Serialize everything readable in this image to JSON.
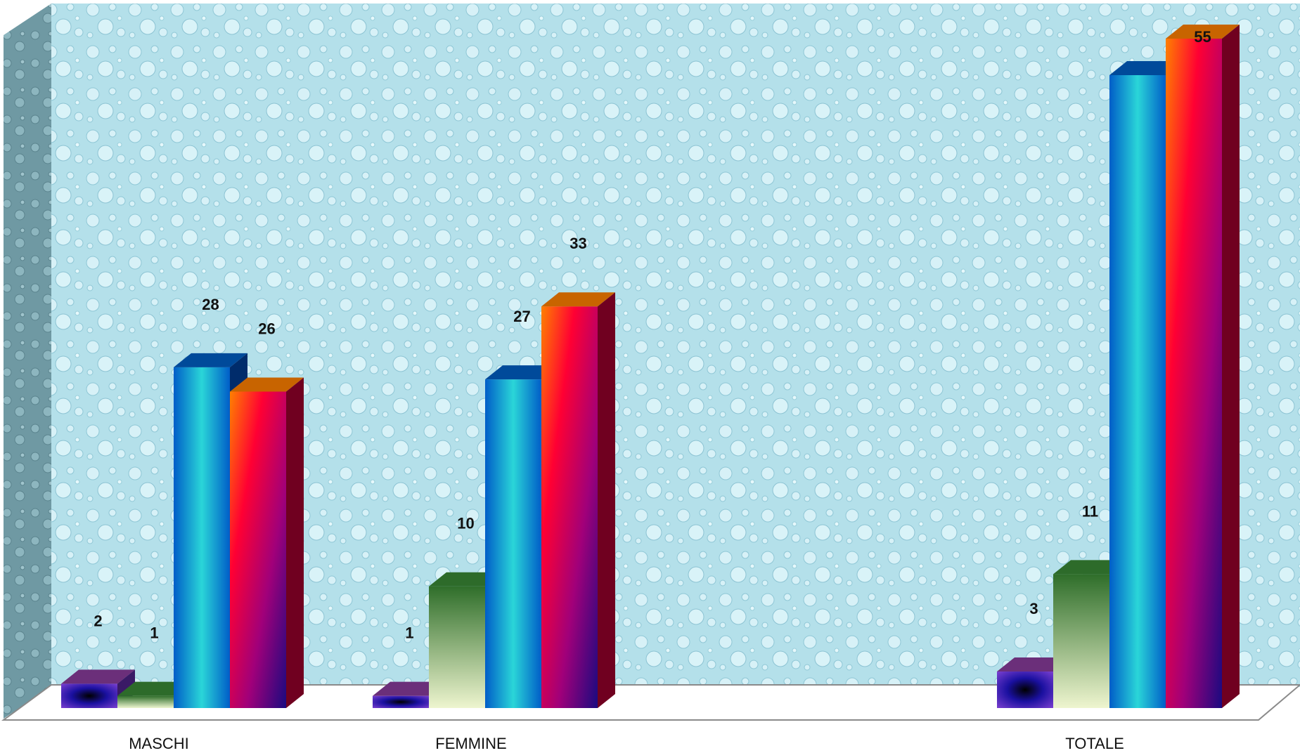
{
  "chart_data": {
    "type": "bar",
    "categories": [
      "MASCHI",
      "FEMMINE",
      "TOTALE"
    ],
    "series": [
      {
        "values": [
          2,
          1,
          3
        ],
        "colors": [
          "#7a3fb0",
          "#0a1a8a",
          "#5a2a80"
        ]
      },
      {
        "values": [
          1,
          10,
          11
        ],
        "colors": [
          "#2f6e2a",
          "#e8f0c0",
          "#3d7a2e"
        ]
      },
      {
        "values": [
          28,
          27,
          52
        ],
        "colors": [
          "#0a5cc8",
          "#2ad0d8",
          "#003f8f"
        ]
      },
      {
        "values": [
          26,
          33,
          55
        ],
        "colors": [
          "#ff8c00",
          "#e8003a",
          "#2a0060"
        ]
      }
    ],
    "data_labels": [
      [
        "2",
        "1",
        "3"
      ],
      [
        "1",
        "10",
        "11"
      ],
      [
        "28",
        "27",
        ""
      ],
      [
        "26",
        "33",
        "55"
      ]
    ],
    "ylim": [
      0,
      55
    ],
    "grid": false,
    "legend": "none"
  }
}
